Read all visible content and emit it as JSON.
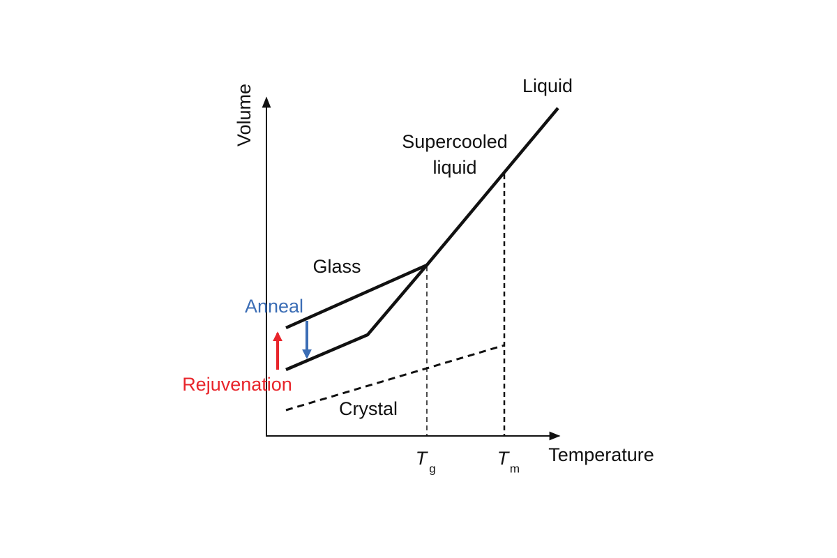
{
  "axes": {
    "y_label": "Volume",
    "x_label": "Temperature"
  },
  "labels": {
    "liquid": "Liquid",
    "supercooled": [
      "Supercooled",
      "liquid"
    ],
    "glass": "Glass",
    "crystal": "Crystal",
    "anneal": "Anneal",
    "rejuvenation": "Rejuvenation"
  },
  "ticks": [
    {
      "symbol": "T",
      "subscript": "g"
    },
    {
      "symbol": "T",
      "subscript": "m"
    }
  ]
}
